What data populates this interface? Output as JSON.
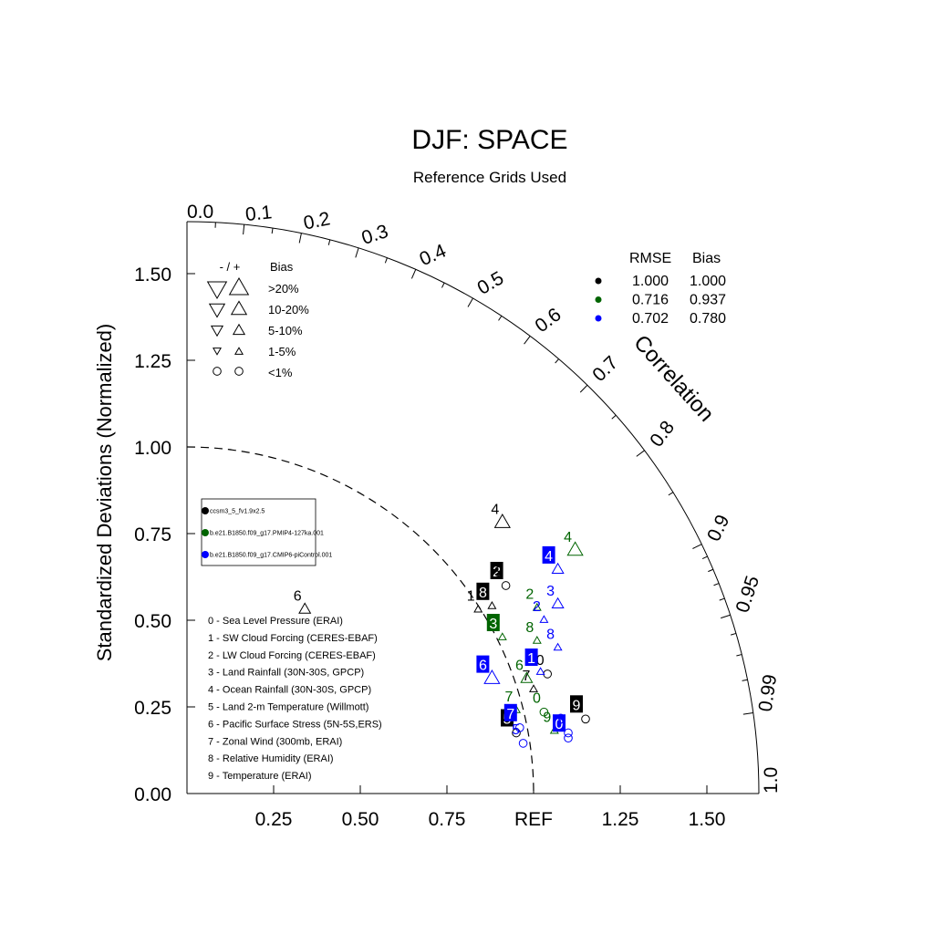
{
  "chart_data": {
    "type": "scatter",
    "subtype": "taylor-diagram",
    "title": "DJF: SPACE",
    "subtitle": "Reference Grids Used",
    "ylabel": "Standardized Deviations (Normalized)",
    "angular_label": "Correlation",
    "ref_label": "REF",
    "ylim": [
      0,
      1.65
    ],
    "y_ticks": [
      {
        "v": 0,
        "label": "0.00"
      },
      {
        "v": 0.25,
        "label": "0.25"
      },
      {
        "v": 0.5,
        "label": "0.50"
      },
      {
        "v": 0.75,
        "label": "0.75"
      },
      {
        "v": 1.0,
        "label": "1.00"
      },
      {
        "v": 1.25,
        "label": "1.25"
      },
      {
        "v": 1.5,
        "label": "1.50"
      }
    ],
    "x_ticks": [
      {
        "v": 0.25,
        "label": "0.25"
      },
      {
        "v": 0.5,
        "label": "0.50"
      },
      {
        "v": 0.75,
        "label": "0.75"
      },
      {
        "v": 1.25,
        "label": "1.25"
      },
      {
        "v": 1.5,
        "label": "1.50"
      }
    ],
    "corr_ticks": [
      {
        "v": 0.0,
        "label": "0.0"
      },
      {
        "v": 0.1,
        "label": "0.1"
      },
      {
        "v": 0.2,
        "label": "0.2"
      },
      {
        "v": 0.3,
        "label": "0.3"
      },
      {
        "v": 0.4,
        "label": "0.4"
      },
      {
        "v": 0.5,
        "label": "0.5"
      },
      {
        "v": 0.6,
        "label": "0.6"
      },
      {
        "v": 0.7,
        "label": "0.7"
      },
      {
        "v": 0.8,
        "label": "0.8"
      },
      {
        "v": 0.9,
        "label": "0.9"
      },
      {
        "v": 0.95,
        "label": "0.95"
      },
      {
        "v": 0.99,
        "label": "0.99"
      },
      {
        "v": 1.0,
        "label": "1.0"
      }
    ],
    "bias_legend": {
      "header_sign": "- / +",
      "header_bias": "Bias",
      "rows": [
        {
          "label": ">20%",
          "marker": "triangle",
          "size": "xl"
        },
        {
          "label": "10-20%",
          "marker": "triangle",
          "size": "l"
        },
        {
          "label": "5-10%",
          "marker": "triangle",
          "size": "m"
        },
        {
          "label": "1-5%",
          "marker": "triangle",
          "size": "s"
        },
        {
          "label": "<1%",
          "marker": "circle",
          "size": "m"
        }
      ]
    },
    "summary_table": {
      "headers": [
        "RMSE",
        "Bias"
      ],
      "rows": [
        {
          "color": "#000000",
          "rmse": "1.000",
          "bias": "1.000"
        },
        {
          "color": "#006400",
          "rmse": "0.716",
          "bias": "0.937"
        },
        {
          "color": "#0000ff",
          "rmse": "0.702",
          "bias": "0.780"
        }
      ]
    },
    "variables": [
      "0 - Sea Level Pressure (ERAI)",
      "1 - SW Cloud Forcing (CERES-EBAF)",
      "2 - LW Cloud Forcing (CERES-EBAF)",
      "3 - Land Rainfall (30N-30S, GPCP)",
      "4 - Ocean Rainfall (30N-30S, GPCP)",
      "5 - Land 2-m Temperature (Willmott)",
      "6 - Pacific Surface Stress (5N-5S,ERS)",
      "7 - Zonal Wind (300mb, ERAI)",
      "8 - Relative Humidity (ERAI)",
      "9 - Temperature (ERAI)"
    ],
    "series": [
      {
        "name": "ccsm3_5_fv1.9x2.5",
        "color": "#000000",
        "points": [
          {
            "id": "0",
            "x": 1.04,
            "y": 0.345,
            "marker": "circle",
            "size": "m",
            "boxed": false
          },
          {
            "id": "1",
            "x": 0.84,
            "y": 0.53,
            "marker": "triangle-up",
            "size": "s",
            "boxed": false
          },
          {
            "id": "2",
            "x": 0.92,
            "y": 0.6,
            "marker": "circle",
            "size": "m",
            "boxed": true
          },
          {
            "id": "3",
            "x": 0.92,
            "y": 0.6,
            "marker": "none",
            "size": "m",
            "boxed": false
          },
          {
            "id": "4",
            "x": 0.91,
            "y": 0.78,
            "marker": "triangle-up",
            "size": "l",
            "boxed": false
          },
          {
            "id": "5",
            "x": 0.95,
            "y": 0.175,
            "marker": "circle",
            "size": "m",
            "boxed": true
          },
          {
            "id": "6",
            "x": 0.34,
            "y": 0.53,
            "marker": "triangle-up",
            "size": "m",
            "boxed": false
          },
          {
            "id": "7",
            "x": 1.0,
            "y": 0.3,
            "marker": "triangle-up",
            "size": "s",
            "boxed": false
          },
          {
            "id": "8",
            "x": 0.88,
            "y": 0.54,
            "marker": "triangle-up",
            "size": "s",
            "boxed": true
          },
          {
            "id": "9",
            "x": 1.15,
            "y": 0.215,
            "marker": "circle",
            "size": "m",
            "boxed": true
          }
        ]
      },
      {
        "name": "b.e21.B1850.f09_g17.PMIP4-127ka.001",
        "color": "#006400",
        "points": [
          {
            "id": "0",
            "x": 1.03,
            "y": 0.235,
            "marker": "circle",
            "size": "m",
            "boxed": false
          },
          {
            "id": "2",
            "x": 1.01,
            "y": 0.535,
            "marker": "triangle-up",
            "size": "s",
            "boxed": false
          },
          {
            "id": "3",
            "x": 0.91,
            "y": 0.45,
            "marker": "triangle-up",
            "size": "s",
            "boxed": true
          },
          {
            "id": "4",
            "x": 1.12,
            "y": 0.7,
            "marker": "triangle-up",
            "size": "l",
            "boxed": false
          },
          {
            "id": "6",
            "x": 0.98,
            "y": 0.33,
            "marker": "triangle-up",
            "size": "m",
            "boxed": false
          },
          {
            "id": "7",
            "x": 0.95,
            "y": 0.24,
            "marker": "triangle-up",
            "size": "s",
            "boxed": false
          },
          {
            "id": "8",
            "x": 1.01,
            "y": 0.44,
            "marker": "triangle-up",
            "size": "s",
            "boxed": false
          },
          {
            "id": "9",
            "x": 1.06,
            "y": 0.18,
            "marker": "triangle-up",
            "size": "s",
            "boxed": false
          }
        ]
      },
      {
        "name": "b.e21.B1850.f09_g17.CMIP6-piControl.001",
        "color": "#0000ff",
        "points": [
          {
            "id": "0",
            "x": 1.1,
            "y": 0.16,
            "marker": "circle",
            "size": "m",
            "boxed": true
          },
          {
            "id": "1",
            "x": 1.02,
            "y": 0.35,
            "marker": "triangle-up",
            "size": "s",
            "boxed": true
          },
          {
            "id": "2",
            "x": 1.03,
            "y": 0.5,
            "marker": "triangle-up",
            "size": "s",
            "boxed": false
          },
          {
            "id": "3",
            "x": 1.07,
            "y": 0.545,
            "marker": "triangle-up",
            "size": "m",
            "boxed": false
          },
          {
            "id": "4",
            "x": 1.07,
            "y": 0.645,
            "marker": "triangle-up",
            "size": "m",
            "boxed": true
          },
          {
            "id": "5",
            "x": 0.97,
            "y": 0.145,
            "marker": "circle",
            "size": "m",
            "boxed": false
          },
          {
            "id": "6",
            "x": 0.88,
            "y": 0.33,
            "marker": "triangle-up",
            "size": "l",
            "boxed": true
          },
          {
            "id": "7",
            "x": 0.96,
            "y": 0.19,
            "marker": "circle",
            "size": "m",
            "boxed": true
          },
          {
            "id": "8",
            "x": 1.07,
            "y": 0.42,
            "marker": "triangle-up",
            "size": "s",
            "boxed": false
          },
          {
            "id": "9",
            "x": 1.1,
            "y": 0.175,
            "marker": "circle",
            "size": "m",
            "boxed": false
          }
        ]
      }
    ]
  }
}
